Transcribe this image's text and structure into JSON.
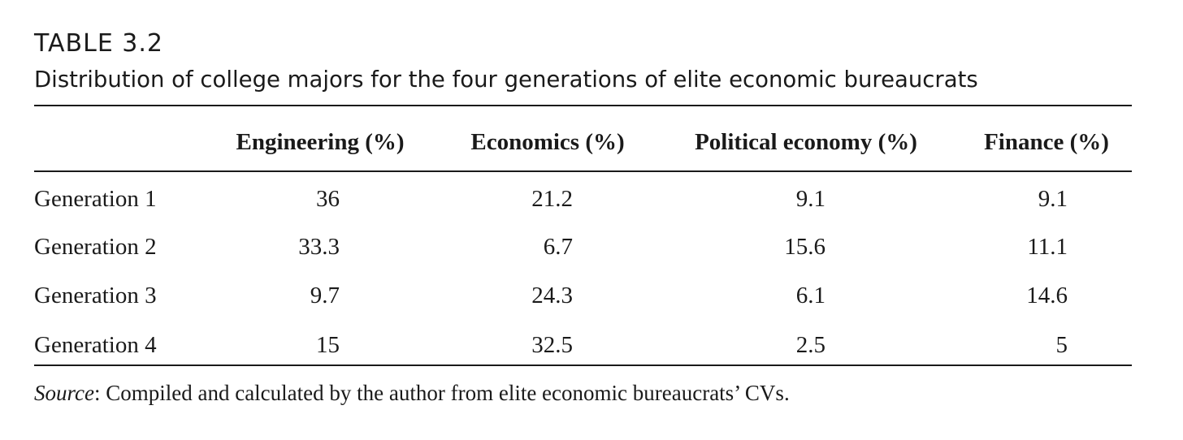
{
  "table": {
    "label": "TABLE 3.2",
    "title": "Distribution of college majors for the four generations of elite economic bureaucrats",
    "columns": [
      "Engineering (%)",
      "Economics (%)",
      "Political economy (%)",
      "Finance (%)"
    ],
    "rows": [
      {
        "label": "Generation 1",
        "values": [
          "36",
          "21.2",
          "9.1",
          "9.1"
        ]
      },
      {
        "label": "Generation 2",
        "values": [
          "33.3",
          "6.7",
          "15.6",
          "11.1"
        ]
      },
      {
        "label": "Generation 3",
        "values": [
          "9.7",
          "24.3",
          "6.1",
          "14.6"
        ]
      },
      {
        "label": "Generation 4",
        "values": [
          "15",
          "32.5",
          "2.5",
          "5"
        ]
      }
    ],
    "source": {
      "prefix": "Source",
      "text": ": Compiled and calculated by the author from elite economic bureaucrats’ CVs."
    }
  }
}
